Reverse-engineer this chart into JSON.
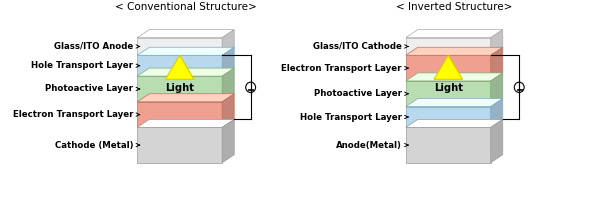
{
  "title_left": "< Conventional Structure>",
  "title_right": "< Inverted Structure>",
  "bg_color": "#ffffff",
  "conv_layers": [
    {
      "label": "Cathode (Metal)",
      "face": "#d4d4d4",
      "edge": "#999999",
      "thickness": 0.22
    },
    {
      "label": "Electron Transport Layer",
      "face": "#f0a090",
      "edge": "#c07060",
      "thickness": 0.16
    },
    {
      "label": "Photoactive Layer",
      "face": "#b8ddb0",
      "edge": "#80aa78",
      "thickness": 0.16
    },
    {
      "label": "Hole Transport Layer",
      "face": "#b8d8ee",
      "edge": "#80a8c8",
      "thickness": 0.13
    },
    {
      "label": "Glass/ITO Anode",
      "face": "#eeeeee",
      "edge": "#aaaaaa",
      "thickness": 0.11
    }
  ],
  "inv_layers": [
    {
      "label": "Anode(Metal)",
      "face": "#d4d4d4",
      "edge": "#999999",
      "thickness": 0.22
    },
    {
      "label": "Hole Transport Layer",
      "face": "#b8d8ee",
      "edge": "#80a8c8",
      "thickness": 0.13
    },
    {
      "label": "Photoactive Layer",
      "face": "#b8ddb0",
      "edge": "#80aa78",
      "thickness": 0.16
    },
    {
      "label": "Electron Transport Layer",
      "face": "#f0a090",
      "edge": "#c07060",
      "thickness": 0.16
    },
    {
      "label": "Glass/ITO Cathode",
      "face": "#eeeeee",
      "edge": "#aaaaaa",
      "thickness": 0.11
    }
  ],
  "light_color": "#ffff00",
  "light_edge": "#ddcc00",
  "text_color": "#000000",
  "label_fontsize": 6.2,
  "title_fontsize": 7.5
}
